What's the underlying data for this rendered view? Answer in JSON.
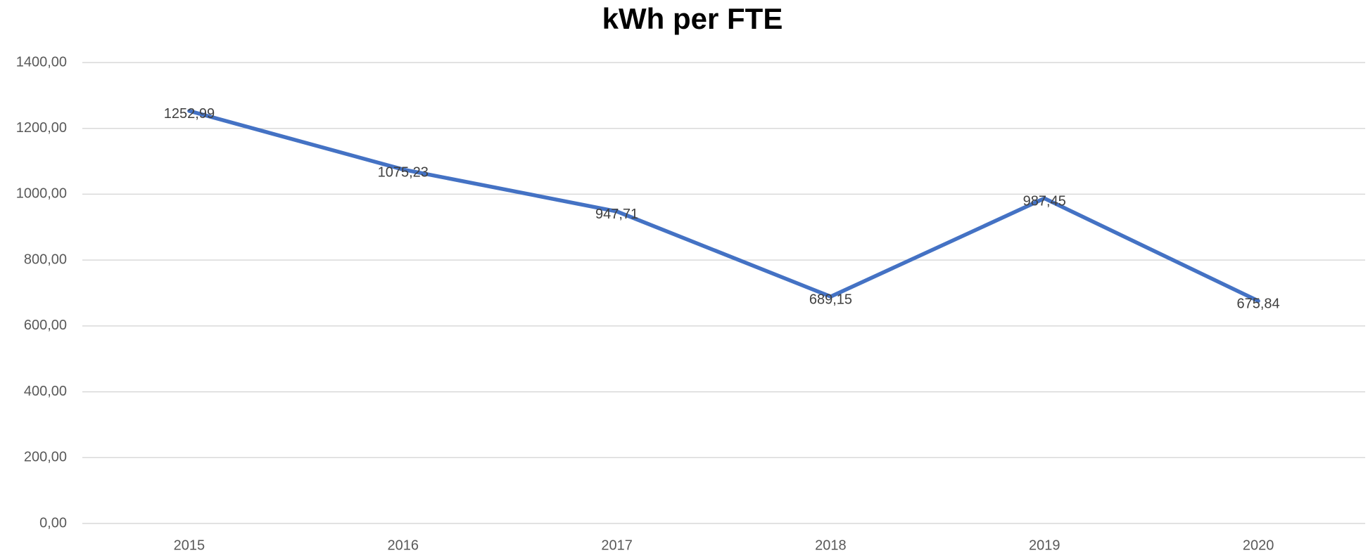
{
  "chart_data": {
    "type": "line",
    "title": "kWh per FTE",
    "categories": [
      "2015",
      "2016",
      "2017",
      "2018",
      "2019",
      "2020"
    ],
    "series": [
      {
        "name": "kWh per FTE",
        "color": "#4472c4",
        "values": [
          1252.99,
          1075.23,
          947.71,
          689.15,
          987.45,
          675.84
        ],
        "value_labels": [
          "1252,99",
          "1075,23",
          "947,71",
          "689,15",
          "987,45",
          "675,84"
        ]
      }
    ],
    "ylim": [
      0,
      1400
    ],
    "yticks": [
      {
        "value": 0,
        "label": "0,00"
      },
      {
        "value": 200,
        "label": "200,00"
      },
      {
        "value": 400,
        "label": "400,00"
      },
      {
        "value": 600,
        "label": "600,00"
      },
      {
        "value": 800,
        "label": "800,00"
      },
      {
        "value": 1000,
        "label": "1000,00"
      },
      {
        "value": 1200,
        "label": "1200,00"
      },
      {
        "value": 1400,
        "label": "1400,00"
      }
    ],
    "grid": true
  }
}
